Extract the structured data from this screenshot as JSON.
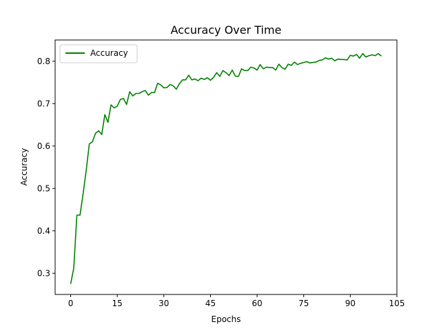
{
  "chart_data": {
    "type": "line",
    "title": "Accuracy Over Time",
    "xlabel": "Epochs",
    "ylabel": "Accuracy",
    "xlim": [
      -5,
      105
    ],
    "ylim": [
      0.25,
      0.85
    ],
    "xticks": [
      0,
      15,
      30,
      45,
      60,
      75,
      90,
      105
    ],
    "yticks": [
      0.3,
      0.4,
      0.5,
      0.6,
      0.7,
      0.8
    ],
    "ytick_labels": [
      "0.3",
      "0.4",
      "0.5",
      "0.6",
      "0.7",
      "0.8"
    ],
    "grid": false,
    "legend": {
      "position": "upper left",
      "entries": [
        "Accuracy"
      ]
    },
    "series": [
      {
        "name": "Accuracy",
        "color": "#008000",
        "x": [
          0,
          1,
          2,
          3,
          4,
          5,
          6,
          7,
          8,
          9,
          10,
          11,
          12,
          13,
          14,
          15,
          16,
          17,
          18,
          19,
          20,
          21,
          22,
          23,
          24,
          25,
          26,
          27,
          28,
          29,
          30,
          31,
          32,
          33,
          34,
          35,
          36,
          37,
          38,
          39,
          40,
          41,
          42,
          43,
          44,
          45,
          46,
          47,
          48,
          49,
          50,
          51,
          52,
          53,
          54,
          55,
          56,
          57,
          58,
          59,
          60,
          61,
          62,
          63,
          64,
          65,
          66,
          67,
          68,
          69,
          70,
          71,
          72,
          73,
          74,
          75,
          76,
          77,
          78,
          79,
          80,
          81,
          82,
          83,
          84,
          85,
          86,
          87,
          88,
          89,
          90,
          91,
          92,
          93,
          94,
          95,
          96,
          97,
          98,
          99,
          100
        ],
        "values": [
          0.275,
          0.312,
          0.437,
          0.437,
          0.487,
          0.542,
          0.605,
          0.61,
          0.63,
          0.636,
          0.627,
          0.674,
          0.656,
          0.697,
          0.69,
          0.694,
          0.71,
          0.712,
          0.698,
          0.728,
          0.718,
          0.724,
          0.724,
          0.728,
          0.731,
          0.72,
          0.726,
          0.726,
          0.748,
          0.744,
          0.737,
          0.738,
          0.745,
          0.742,
          0.734,
          0.747,
          0.756,
          0.756,
          0.767,
          0.756,
          0.758,
          0.754,
          0.76,
          0.757,
          0.761,
          0.755,
          0.762,
          0.773,
          0.764,
          0.778,
          0.773,
          0.766,
          0.779,
          0.765,
          0.764,
          0.782,
          0.778,
          0.778,
          0.786,
          0.784,
          0.779,
          0.792,
          0.782,
          0.786,
          0.785,
          0.785,
          0.779,
          0.793,
          0.785,
          0.781,
          0.793,
          0.79,
          0.798,
          0.792,
          0.795,
          0.797,
          0.799,
          0.796,
          0.797,
          0.798,
          0.802,
          0.803,
          0.808,
          0.805,
          0.807,
          0.801,
          0.805,
          0.804,
          0.804,
          0.803,
          0.814,
          0.812,
          0.816,
          0.807,
          0.818,
          0.81,
          0.813,
          0.815,
          0.813,
          0.818,
          0.812
        ]
      }
    ]
  }
}
